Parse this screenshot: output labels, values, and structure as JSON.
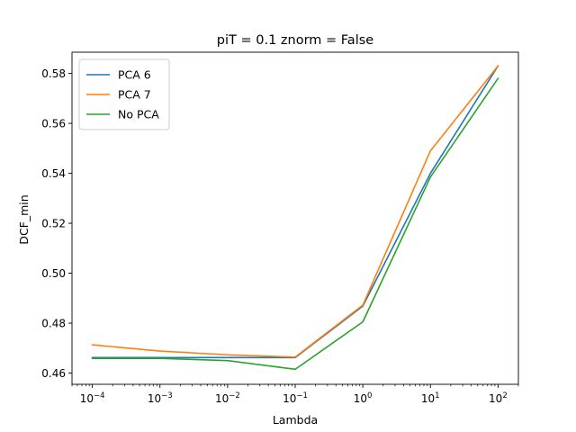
{
  "chart_data": {
    "type": "line",
    "title": "piT = 0.1 znorm = False",
    "xlabel": "Lambda",
    "ylabel": "DCF_min",
    "xscale": "log",
    "x": [
      0.0001,
      0.001,
      0.01,
      0.1,
      1,
      10,
      100
    ],
    "xlim": [
      5e-05,
      200
    ],
    "ylim": [
      0.4555,
      0.5885
    ],
    "x_ticks": [
      {
        "value": 0.0001,
        "base": "10",
        "exp": "−4"
      },
      {
        "value": 0.001,
        "base": "10",
        "exp": "−3"
      },
      {
        "value": 0.01,
        "base": "10",
        "exp": "−2"
      },
      {
        "value": 0.1,
        "base": "10",
        "exp": "−1"
      },
      {
        "value": 1,
        "base": "10",
        "exp": "0"
      },
      {
        "value": 10,
        "base": "10",
        "exp": "1"
      },
      {
        "value": 100,
        "base": "10",
        "exp": "2"
      }
    ],
    "y_ticks": [
      {
        "value": 0.46,
        "label": "0.46"
      },
      {
        "value": 0.48,
        "label": "0.48"
      },
      {
        "value": 0.5,
        "label": "0.50"
      },
      {
        "value": 0.52,
        "label": "0.52"
      },
      {
        "value": 0.54,
        "label": "0.54"
      },
      {
        "value": 0.56,
        "label": "0.56"
      },
      {
        "value": 0.58,
        "label": "0.58"
      }
    ],
    "series": [
      {
        "name": "PCA 6",
        "color": "#1f77b4",
        "values": [
          0.4662,
          0.4662,
          0.4662,
          0.4662,
          0.4868,
          0.54,
          0.583
        ]
      },
      {
        "name": "PCA 7",
        "color": "#ff7f0e",
        "values": [
          0.4713,
          0.4688,
          0.4673,
          0.4664,
          0.4872,
          0.549,
          0.583
        ]
      },
      {
        "name": "No PCA",
        "color": "#2ca02c",
        "values": [
          0.4659,
          0.4659,
          0.465,
          0.4615,
          0.4805,
          0.5385,
          0.578
        ]
      }
    ],
    "legend": "top-left",
    "grid": false
  }
}
